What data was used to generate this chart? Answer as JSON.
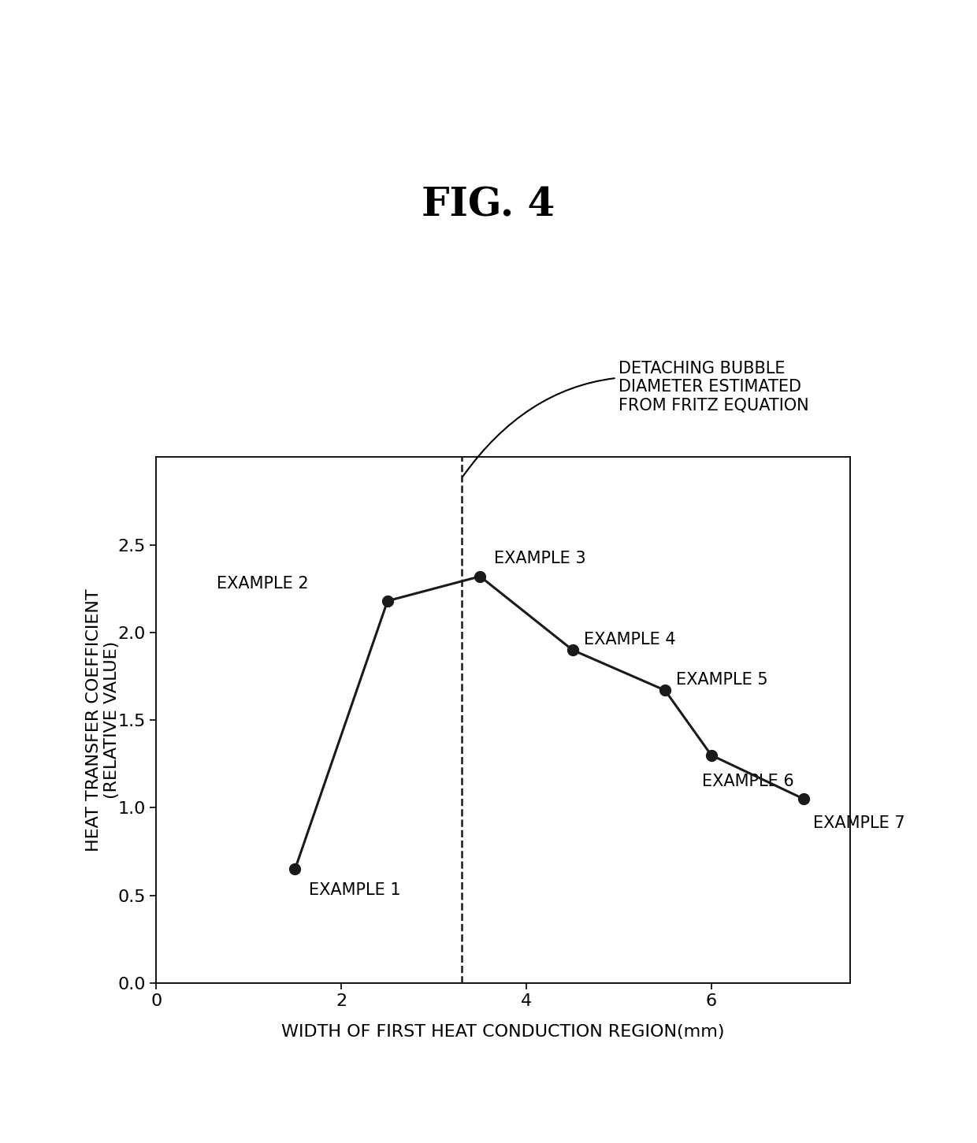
{
  "title": "FIG. 4",
  "xlabel": "WIDTH OF FIRST HEAT CONDUCTION REGION(mm)",
  "ylabel": "HEAT TRANSFER COEFFICIENT\n(RELATIVE VALUE)",
  "x_data": [
    1.5,
    2.5,
    3.5,
    4.5,
    5.5,
    6.0,
    7.0
  ],
  "y_data": [
    0.65,
    2.18,
    2.32,
    1.9,
    1.67,
    1.3,
    1.05
  ],
  "xlim": [
    0,
    7.5
  ],
  "ylim": [
    0,
    3.0
  ],
  "xticks": [
    0,
    2,
    4,
    6
  ],
  "yticks": [
    0,
    0.5,
    1.0,
    1.5,
    2.0,
    2.5
  ],
  "vline_x": 3.3,
  "point_labels": [
    "EXAMPLE 1",
    "EXAMPLE 2",
    "EXAMPLE 3",
    "EXAMPLE 4",
    "EXAMPLE 5",
    "EXAMPLE 6",
    "EXAMPLE 7"
  ],
  "label_offsets_x": [
    0.15,
    -0.85,
    0.15,
    0.12,
    0.12,
    -0.1,
    0.1
  ],
  "label_offsets_y": [
    -0.12,
    0.1,
    0.1,
    0.06,
    0.06,
    -0.15,
    -0.14
  ],
  "label_ha": [
    "left",
    "right",
    "left",
    "left",
    "left",
    "left",
    "left"
  ],
  "annotation_text": "DETACHING BUBBLE\nDIAMETER ESTIMATED\nFROM FRITZ EQUATION",
  "line_color": "#1a1a1a",
  "marker_color": "#1a1a1a",
  "background_color": "#ffffff",
  "title_fontsize": 36,
  "label_fontsize": 16,
  "tick_fontsize": 16,
  "point_label_fontsize": 15
}
